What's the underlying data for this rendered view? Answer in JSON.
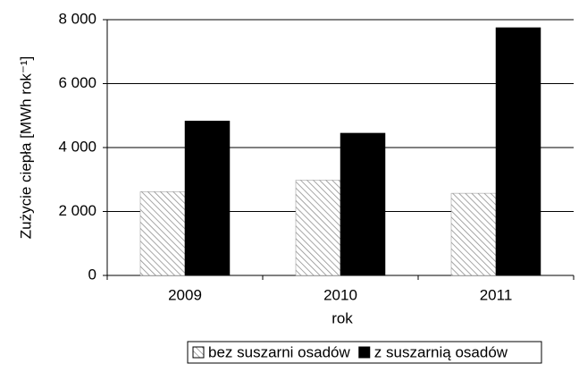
{
  "chart_data": {
    "type": "bar",
    "ylabel": "Zużycie ciepła [MWh rok⁻¹]",
    "xlabel": "rok",
    "categories": [
      "2009",
      "2010",
      "2011"
    ],
    "series": [
      {
        "name": "bez suszarni osadów",
        "color": "#909090",
        "hatch": true,
        "values": [
          2620,
          2980,
          2570
        ]
      },
      {
        "name": "z suszarnią osadów",
        "color": "#000000",
        "hatch": false,
        "values": [
          4830,
          4450,
          7750
        ]
      }
    ],
    "ylim": [
      0,
      8000
    ],
    "yticks": [
      0,
      {
        "value": 2000,
        "label": "2 000"
      },
      {
        "value": 4000,
        "label": "4 000"
      },
      {
        "value": 6000,
        "label": "6 000"
      },
      {
        "value": 8000,
        "label": "8 000"
      }
    ],
    "grid": true,
    "legend": "bottom"
  }
}
